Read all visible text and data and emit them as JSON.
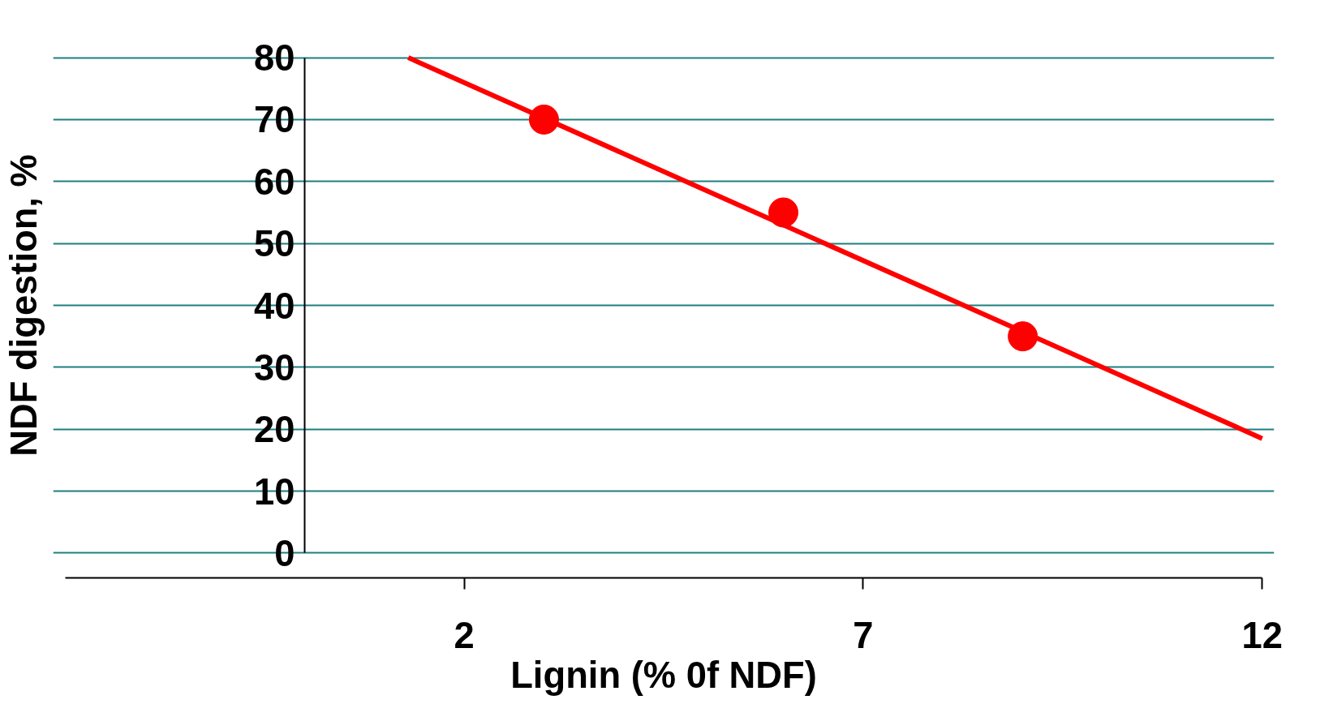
{
  "chart_data": {
    "type": "scatter",
    "xlabel": "Lignin (% 0f NDF)",
    "ylabel": "NDF digestion, %",
    "xlim": [
      -3,
      12
    ],
    "xticks": [
      2,
      7,
      12
    ],
    "ylim": [
      0,
      80
    ],
    "yticks": [
      0,
      10,
      20,
      30,
      40,
      50,
      60,
      70,
      80
    ],
    "grid": "y",
    "series": [
      {
        "color": "#ff0000",
        "x": [
          3,
          6,
          9
        ],
        "values": [
          70,
          55,
          35
        ],
        "marker": "circle"
      },
      {
        "type": "line",
        "color": "#ff0000",
        "x": [
          1.3,
          12
        ],
        "values": [
          80,
          18.5
        ],
        "line_style": "solid",
        "marker": "none"
      }
    ]
  }
}
